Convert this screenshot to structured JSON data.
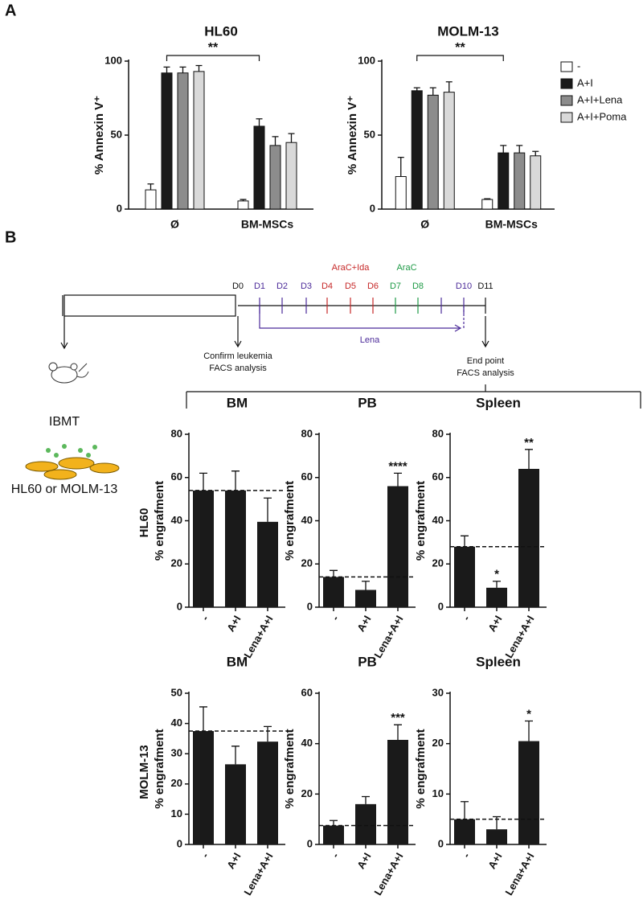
{
  "panel_labels": [
    "A",
    "B"
  ],
  "chart_data": [
    {
      "type": "grouped-bar",
      "title": "HL60",
      "y_label": "% Annexin V⁺",
      "categories": [
        "Ø",
        "BM-MSCs"
      ],
      "ylim": [
        0,
        100
      ],
      "yticks": [
        0,
        50,
        100
      ],
      "series": [
        {
          "name": "-",
          "color": "#ffffff",
          "values": [
            13,
            5.5
          ],
          "errors": [
            4,
            1
          ]
        },
        {
          "name": "A+I",
          "color": "#1a1a1a",
          "values": [
            92,
            56
          ],
          "errors": [
            4,
            5
          ]
        },
        {
          "name": "A+I+Lena",
          "color": "#8c8c8c",
          "values": [
            92,
            43
          ],
          "errors": [
            4,
            6
          ]
        },
        {
          "name": "A+I+Poma",
          "color": "#d9d9d9",
          "values": [
            93,
            45
          ],
          "errors": [
            4,
            6
          ]
        }
      ],
      "annotation": "**"
    },
    {
      "type": "grouped-bar",
      "title": "MOLM-13",
      "y_label": "% Annexin V⁺",
      "categories": [
        "Ø",
        "BM-MSCs"
      ],
      "ylim": [
        0,
        100
      ],
      "yticks": [
        0,
        50,
        100
      ],
      "series": [
        {
          "name": "-",
          "color": "#ffffff",
          "values": [
            22,
            6.5
          ],
          "errors": [
            13,
            0.5
          ]
        },
        {
          "name": "A+I",
          "color": "#1a1a1a",
          "values": [
            80,
            38
          ],
          "errors": [
            2,
            5
          ]
        },
        {
          "name": "A+I+Lena",
          "color": "#8c8c8c",
          "values": [
            77,
            38
          ],
          "errors": [
            5,
            5
          ]
        },
        {
          "name": "A+I+Poma",
          "color": "#d9d9d9",
          "values": [
            79,
            36
          ],
          "errors": [
            7,
            3
          ]
        }
      ],
      "annotation": "**",
      "legend": "right"
    },
    {
      "type": "bar",
      "title": "BM",
      "y_label": "% engrafment",
      "categories": [
        "-",
        "A+I",
        "Lena+A+I"
      ],
      "values": [
        54,
        54,
        39.5
      ],
      "errors": [
        8,
        9,
        11
      ],
      "reference": 54,
      "significance": [
        null,
        null,
        null
      ],
      "color": "#1a1a1a",
      "ylim": [
        0,
        80
      ],
      "yticks": [
        0,
        20,
        40,
        60,
        80
      ]
    },
    {
      "type": "bar",
      "title": "PB",
      "y_label": "% engrafment",
      "categories": [
        "-",
        "A+I",
        "Lena+A+I"
      ],
      "values": [
        14,
        8,
        56
      ],
      "errors": [
        3,
        4,
        6
      ],
      "reference": 14,
      "significance": [
        null,
        null,
        "****"
      ],
      "color": "#1a1a1a",
      "ylim": [
        0,
        80
      ],
      "yticks": [
        0,
        20,
        40,
        60,
        80
      ]
    },
    {
      "type": "bar",
      "title": "Spleen",
      "y_label": "% engrafment",
      "categories": [
        "-",
        "A+I",
        "Lena+A+I"
      ],
      "values": [
        28,
        9,
        64
      ],
      "errors": [
        5,
        3,
        9
      ],
      "reference": 28,
      "significance": [
        null,
        "*",
        "**"
      ],
      "color": "#1a1a1a",
      "ylim": [
        0,
        80
      ],
      "yticks": [
        0,
        20,
        40,
        60,
        80
      ]
    },
    {
      "type": "bar",
      "title": "BM",
      "y_label": "% engrafment",
      "categories": [
        "-",
        "A+I",
        "Lena+A+I"
      ],
      "values": [
        37.5,
        26.5,
        34
      ],
      "errors": [
        8,
        6,
        5
      ],
      "reference": 37.5,
      "significance": [
        null,
        null,
        null
      ],
      "color": "#1a1a1a",
      "ylim": [
        0,
        50
      ],
      "yticks": [
        0,
        10,
        20,
        30,
        40,
        50
      ]
    },
    {
      "type": "bar",
      "title": "PB",
      "y_label": "% engrafment",
      "categories": [
        "-",
        "A+I",
        "Lena+A+I"
      ],
      "values": [
        7.5,
        16,
        41.5
      ],
      "errors": [
        2,
        3,
        6
      ],
      "reference": 7.5,
      "significance": [
        null,
        null,
        "***"
      ],
      "color": "#1a1a1a",
      "ylim": [
        0,
        60
      ],
      "yticks": [
        0,
        20,
        40,
        60
      ]
    },
    {
      "type": "bar",
      "title": "Spleen",
      "y_label": "% engrafment",
      "categories": [
        "-",
        "A+I",
        "Lena+A+I"
      ],
      "values": [
        5,
        3,
        20.5
      ],
      "errors": [
        3.5,
        2.5,
        4
      ],
      "reference": 5,
      "significance": [
        null,
        null,
        "*"
      ],
      "color": "#1a1a1a",
      "ylim": [
        0,
        30
      ],
      "yticks": [
        0,
        10,
        20,
        30
      ]
    }
  ],
  "row_labels": [
    "HL60",
    "MOLM-13"
  ],
  "timeline": {
    "days": [
      {
        "label": "D0",
        "color": "#111111"
      },
      {
        "label": "D1",
        "color": "#4b2a99"
      },
      {
        "label": "D2",
        "color": "#4b2a99"
      },
      {
        "label": "D3",
        "color": "#4b2a99"
      },
      {
        "label": "D4",
        "color": "#c62828"
      },
      {
        "label": "D5",
        "color": "#c62828"
      },
      {
        "label": "D6",
        "color": "#c62828"
      },
      {
        "label": "D7",
        "color": "#1e9a46"
      },
      {
        "label": "D8",
        "color": "#1e9a46"
      },
      {
        "label": null,
        "color": "#4b2a99"
      },
      {
        "label": "D10",
        "color": "#4b2a99"
      },
      {
        "label": "D11",
        "color": "#111111"
      }
    ],
    "phases": [
      {
        "label": "AraC+Ida",
        "color": "#c62828"
      },
      {
        "label": "AraC",
        "color": "#1e9a46"
      },
      {
        "label": "Lena",
        "color": "#4b2a99"
      }
    ],
    "start": [
      "Confirm leukemia",
      "FACS analysis"
    ],
    "end": [
      "End point",
      "FACS analysis"
    ],
    "injection": "IBMT",
    "cells": "HL60 or MOLM-13"
  }
}
